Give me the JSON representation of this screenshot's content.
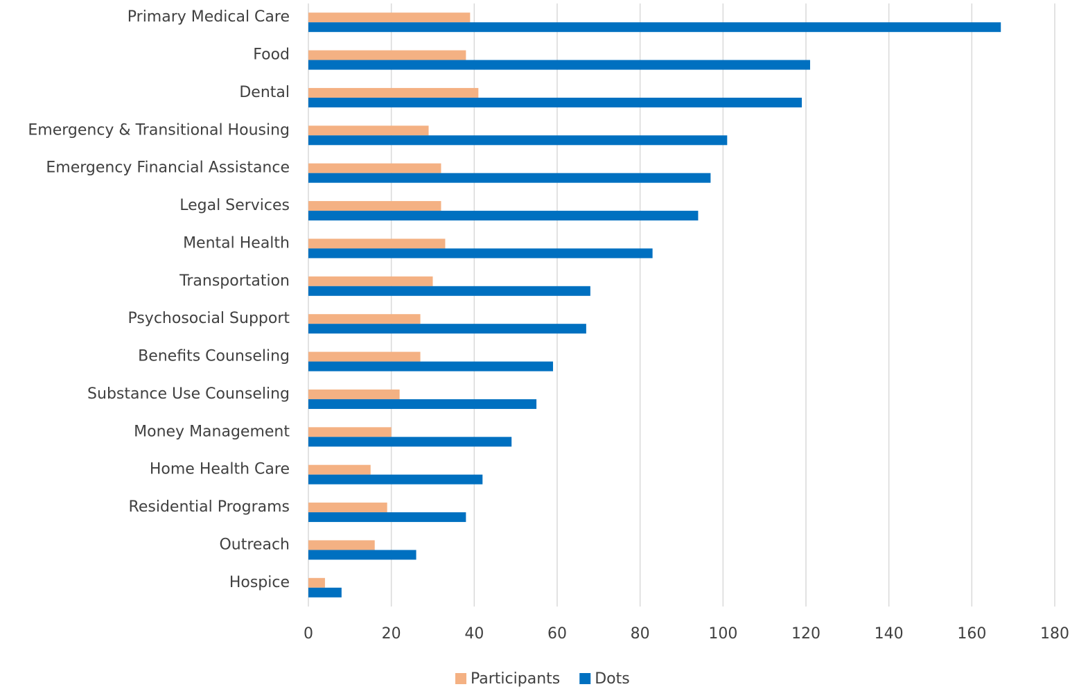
{
  "chart_data": {
    "type": "barh",
    "categories": [
      "Primary Medical Care",
      "Food",
      "Dental",
      "Emergency & Transitional Housing",
      "Emergency Financial Assistance",
      "Legal Services",
      "Mental Health",
      "Transportation",
      "Psychosocial Support",
      "Benefits Counseling",
      "Substance Use Counseling",
      "Money Management",
      "Home Health Care",
      "Residential Programs",
      "Outreach",
      "Hospice"
    ],
    "series": [
      {
        "name": "Participants",
        "color": "#f4b183",
        "values": [
          39,
          38,
          41,
          29,
          32,
          32,
          33,
          30,
          27,
          27,
          22,
          20,
          15,
          19,
          16,
          4
        ]
      },
      {
        "name": "Dots",
        "color": "#0070c0",
        "values": [
          167,
          121,
          119,
          101,
          97,
          94,
          83,
          68,
          67,
          59,
          55,
          49,
          42,
          38,
          26,
          8
        ]
      }
    ],
    "xlim": [
      0,
      180
    ],
    "xticks": [
      0,
      20,
      40,
      60,
      80,
      100,
      120,
      140,
      160,
      180
    ],
    "grid": true,
    "legend": "bottom"
  }
}
